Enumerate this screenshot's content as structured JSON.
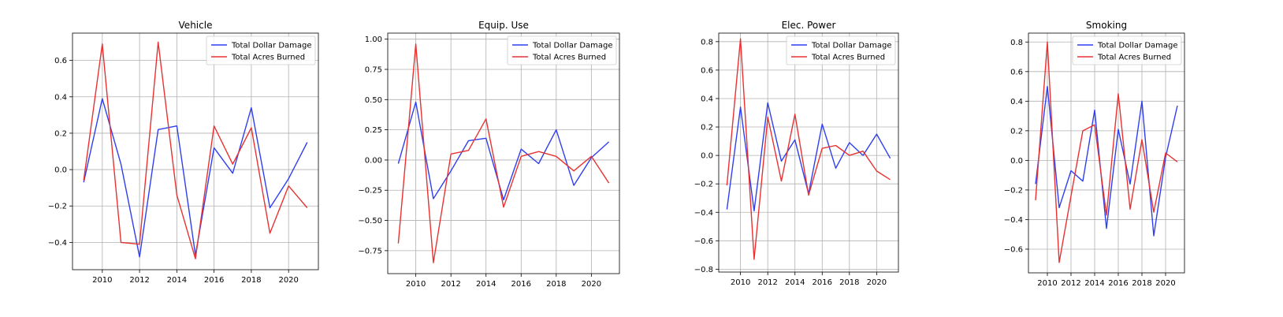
{
  "chart_data": [
    {
      "type": "line",
      "title": "Vehicle",
      "xlabel": "",
      "ylabel": "",
      "x": [
        2009,
        2010,
        2011,
        2012,
        2013,
        2014,
        2015,
        2016,
        2017,
        2018,
        2019,
        2020,
        2021
      ],
      "xticks": [
        2010,
        2012,
        2014,
        2016,
        2018,
        2020
      ],
      "yticks": [
        -0.4,
        -0.2,
        0.0,
        0.2,
        0.4,
        0.6
      ],
      "ytick_labels": [
        "−0.4",
        "−0.2",
        "0.0",
        "0.2",
        "0.4",
        "0.6"
      ],
      "ylim": [
        -0.55,
        0.75
      ],
      "xlim": [
        2008.4,
        2021.6
      ],
      "grid": true,
      "legend_position": "top-right",
      "series": [
        {
          "name": "Total Dollar Damage",
          "color": "#2f3ff0",
          "values": [
            -0.07,
            0.39,
            0.03,
            -0.48,
            0.22,
            0.24,
            -0.47,
            0.12,
            -0.02,
            0.34,
            -0.21,
            -0.05,
            0.15
          ]
        },
        {
          "name": "Total Acres Burned",
          "color": "#e83232",
          "values": [
            -0.06,
            0.69,
            -0.4,
            -0.41,
            0.7,
            -0.14,
            -0.49,
            0.24,
            0.03,
            0.23,
            -0.35,
            -0.09,
            -0.21
          ]
        }
      ]
    },
    {
      "type": "line",
      "title": "Equip. Use",
      "xlabel": "",
      "ylabel": "",
      "x": [
        2009,
        2010,
        2011,
        2012,
        2013,
        2014,
        2015,
        2016,
        2017,
        2018,
        2019,
        2020,
        2021
      ],
      "xticks": [
        2010,
        2012,
        2014,
        2016,
        2018,
        2020
      ],
      "yticks": [
        -0.75,
        -0.5,
        -0.25,
        0.0,
        0.25,
        0.5,
        0.75,
        1.0
      ],
      "ytick_labels": [
        "−0.75",
        "−0.50",
        "−0.25",
        "0.00",
        "0.25",
        "0.50",
        "0.75",
        "1.00"
      ],
      "ylim": [
        -0.94,
        1.05
      ],
      "xlim": [
        2008.4,
        2021.6
      ],
      "grid": true,
      "legend_position": "top-right",
      "series": [
        {
          "name": "Total Dollar Damage",
          "color": "#2f3ff0",
          "values": [
            -0.03,
            0.48,
            -0.32,
            -0.09,
            0.16,
            0.18,
            -0.33,
            0.09,
            -0.03,
            0.25,
            -0.21,
            0.02,
            0.15
          ]
        },
        {
          "name": "Total Acres Burned",
          "color": "#e83232",
          "values": [
            -0.69,
            0.96,
            -0.85,
            0.05,
            0.08,
            0.34,
            -0.39,
            0.03,
            0.07,
            0.03,
            -0.09,
            0.03,
            -0.19
          ]
        }
      ]
    },
    {
      "type": "line",
      "title": "Elec. Power",
      "xlabel": "",
      "ylabel": "",
      "x": [
        2009,
        2010,
        2011,
        2012,
        2013,
        2014,
        2015,
        2016,
        2017,
        2018,
        2019,
        2020,
        2021
      ],
      "xticks": [
        2010,
        2012,
        2014,
        2016,
        2018,
        2020
      ],
      "yticks": [
        -0.8,
        -0.6,
        -0.4,
        -0.2,
        0.0,
        0.2,
        0.4,
        0.6,
        0.8
      ],
      "ytick_labels": [
        "−0.8",
        "−0.6",
        "−0.4",
        "−0.2",
        "0.0",
        "0.2",
        "0.4",
        "0.6",
        "0.8"
      ],
      "ylim": [
        -0.82,
        0.86
      ],
      "xlim": [
        2008.4,
        2021.6
      ],
      "grid": true,
      "legend_position": "top-right",
      "series": [
        {
          "name": "Total Dollar Damage",
          "color": "#2f3ff0",
          "values": [
            -0.38,
            0.34,
            -0.39,
            0.37,
            -0.04,
            0.11,
            -0.27,
            0.22,
            -0.09,
            0.09,
            0.0,
            0.15,
            -0.02
          ]
        },
        {
          "name": "Total Acres Burned",
          "color": "#e83232",
          "values": [
            -0.21,
            0.82,
            -0.73,
            0.27,
            -0.18,
            0.29,
            -0.28,
            0.05,
            0.07,
            0.0,
            0.03,
            -0.11,
            -0.17
          ]
        }
      ]
    },
    {
      "type": "line",
      "title": "Smoking",
      "xlabel": "",
      "ylabel": "",
      "x": [
        2009,
        2010,
        2011,
        2012,
        2013,
        2014,
        2015,
        2016,
        2017,
        2018,
        2019,
        2020,
        2021
      ],
      "xticks": [
        2010,
        2012,
        2014,
        2016,
        2018,
        2020
      ],
      "yticks": [
        -0.6,
        -0.4,
        -0.2,
        0.0,
        0.2,
        0.4,
        0.6,
        0.8
      ],
      "ytick_labels": [
        "−0.6",
        "−0.4",
        "−0.2",
        "0.0",
        "0.2",
        "0.4",
        "0.6",
        "0.8"
      ],
      "ylim": [
        -0.76,
        0.86
      ],
      "xlim": [
        2008.4,
        2021.6
      ],
      "grid": true,
      "legend_position": "top-right",
      "series": [
        {
          "name": "Total Dollar Damage",
          "color": "#2f3ff0",
          "values": [
            -0.16,
            0.5,
            -0.32,
            -0.07,
            -0.14,
            0.34,
            -0.46,
            0.21,
            -0.16,
            0.4,
            -0.51,
            0.02,
            0.37
          ]
        },
        {
          "name": "Total Acres Burned",
          "color": "#e83232",
          "values": [
            -0.27,
            0.8,
            -0.69,
            -0.24,
            0.2,
            0.24,
            -0.37,
            0.45,
            -0.33,
            0.14,
            -0.35,
            0.05,
            -0.01
          ]
        }
      ]
    }
  ]
}
